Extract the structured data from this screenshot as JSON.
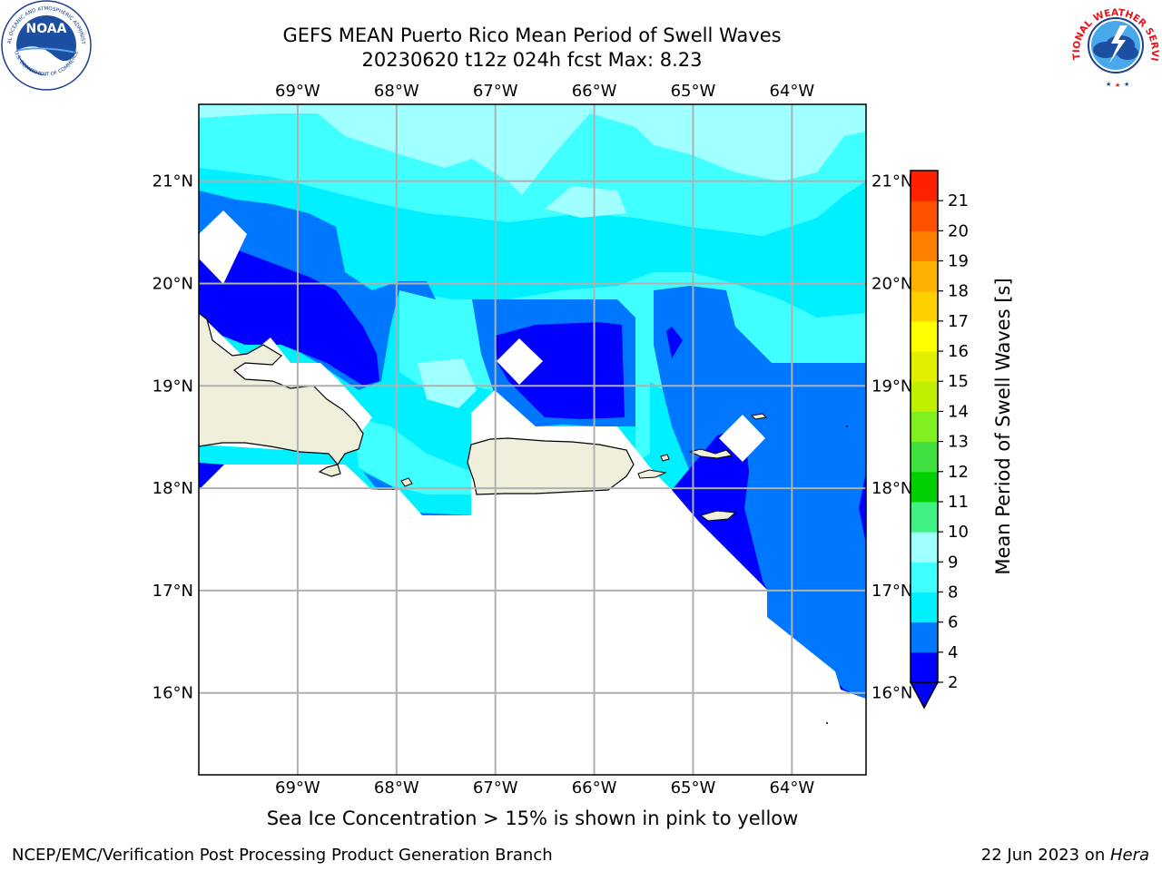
{
  "header": {
    "title_line1": "GEFS MEAN Puerto Rico Mean Period of Swell Waves",
    "title_line2": "20230620 t12z 024h fcst   Max: 8.23"
  },
  "map": {
    "lon_labels": [
      "69°W",
      "68°W",
      "67°W",
      "66°W",
      "65°W",
      "64°W"
    ],
    "lat_labels": [
      "21°N",
      "20°N",
      "19°N",
      "18°N",
      "17°N",
      "16°N"
    ],
    "lon_values": [
      -69,
      -68,
      -67,
      -66,
      -65,
      -64
    ],
    "lat_values": [
      21,
      20,
      19,
      18,
      17,
      16
    ],
    "extent": {
      "lon_min": -70,
      "lon_max": -63.25,
      "lat_min": 15.2,
      "lat_max": 21.75
    },
    "land_color": "#efefdc",
    "grid_color": "#b0b0b0"
  },
  "colorbar": {
    "label": "Mean Period of Swell Waves [s]",
    "tick_labels": [
      "2",
      "4",
      "6",
      "8",
      "9",
      "10",
      "11",
      "12",
      "13",
      "14",
      "15",
      "16",
      "17",
      "18",
      "19",
      "20",
      "21"
    ],
    "colors": [
      "#0000ff",
      "#0077ff",
      "#00f0ff",
      "#40ffff",
      "#a0ffff",
      "#40f080",
      "#00d000",
      "#40e040",
      "#80f020",
      "#c0f000",
      "#e0f000",
      "#ffff00",
      "#ffd000",
      "#ffb000",
      "#ff8000",
      "#ff5000",
      "#ff2000"
    ]
  },
  "footer": {
    "subtitle": "Sea Ice Concentration > 15% is shown in pink to yellow",
    "left": "NCEP/EMC/Verification Post Processing Product Generation Branch",
    "right_prefix": "22 Jun 2023 on ",
    "right_host": "Hera"
  },
  "logos": {
    "noaa_text": "NOAA",
    "noaa_ring": "NATIONAL OCEANIC AND ATMOSPHERIC ADMINISTRATION",
    "noaa_ring_bottom": "U.S. DEPARTMENT OF COMMERCE",
    "nws_ring": "NATIONAL WEATHER SERVICE"
  }
}
